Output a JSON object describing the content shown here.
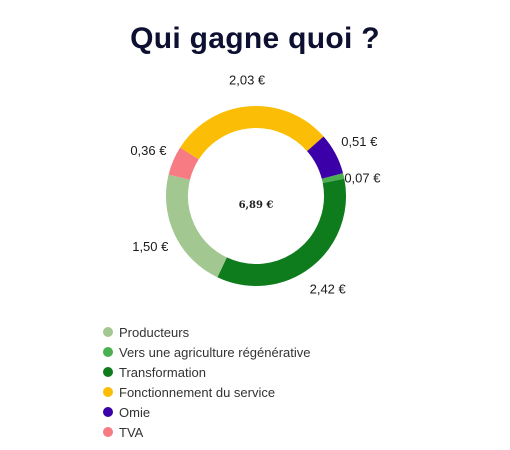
{
  "title": "Qui gagne quoi ?",
  "chart_data": {
    "type": "pie",
    "variant": "donut",
    "center_label": "6,89 €",
    "legend_position": "bottom-left",
    "slices": [
      {
        "name": "Producteurs",
        "value": 1.5,
        "label": "1,50 €",
        "color": "#a2c790"
      },
      {
        "name": "Vers une agriculture régénérative",
        "value": 0.07,
        "label": "0,07 €",
        "color": "#4caf50"
      },
      {
        "name": "Transformation",
        "value": 2.42,
        "label": "2,42 €",
        "color": "#0e7c1d"
      },
      {
        "name": "Fonctionnement du service",
        "value": 2.03,
        "label": "2,03 €",
        "color": "#fbbd05"
      },
      {
        "name": "Omie",
        "value": 0.51,
        "label": "0,51 €",
        "color": "#3b00a8"
      },
      {
        "name": "TVA",
        "value": 0.36,
        "label": "0,36 €",
        "color": "#f67b82"
      }
    ],
    "draw_order": [
      "Vers une agriculture régénérative",
      "Transformation",
      "Producteurs",
      "TVA",
      "Fonctionnement du service",
      "Omie"
    ]
  }
}
